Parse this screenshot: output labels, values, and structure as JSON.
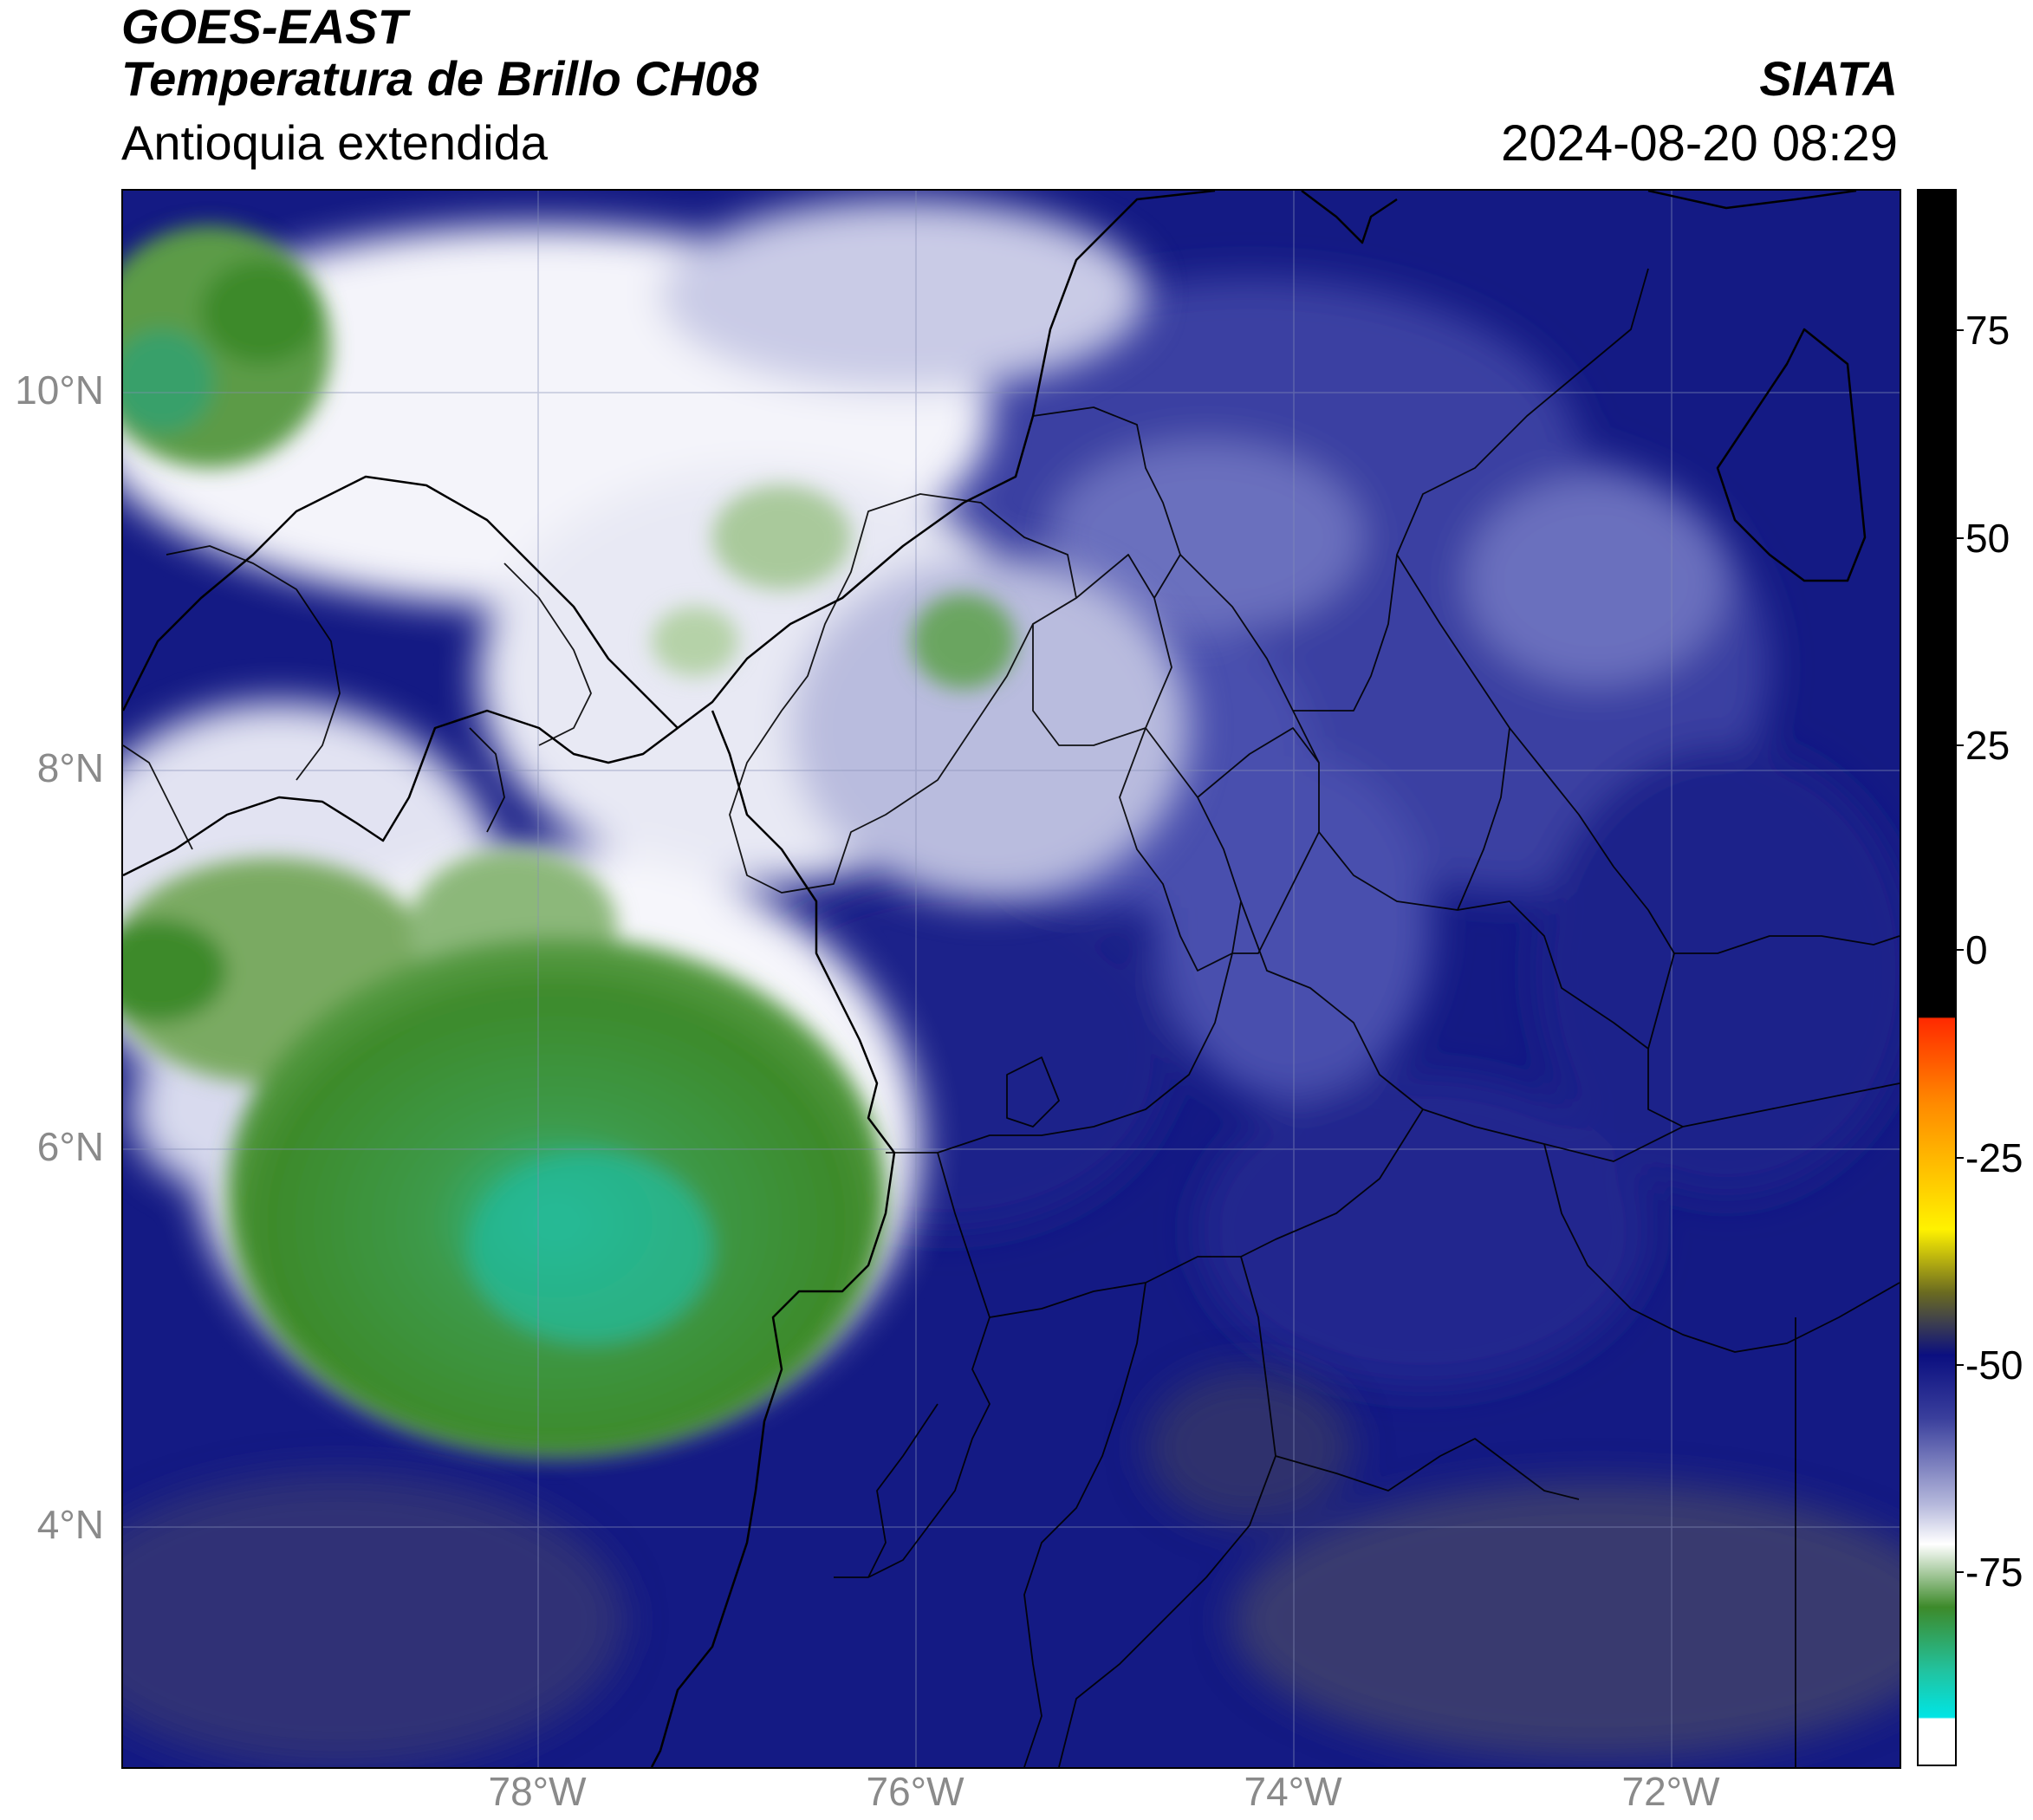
{
  "header": {
    "satellite": "GOES-EAST",
    "product": "Temperatura de Brillo CH08",
    "region": "Antioquia extendida",
    "organization": "SIATA",
    "datetime": "2024-08-20 08:29"
  },
  "map": {
    "lat_ticks": [
      "10°N",
      "8°N",
      "6°N",
      "4°N"
    ],
    "lon_ticks": [
      "78°W",
      "76°W",
      "74°W",
      "72°W"
    ],
    "extent": {
      "lon_min": -80.2,
      "lon_max": -70.8,
      "lat_min": 2.5,
      "lat_max": 11.1
    },
    "grid": true,
    "boundaries": [
      "coastline",
      "country borders",
      "department borders"
    ]
  },
  "colorbar": {
    "ticks": [
      "75",
      "50",
      "25",
      "0",
      "-25",
      "-50",
      "-75"
    ],
    "min": -93,
    "max": 92,
    "colors": {
      "warm_black": "#000000",
      "red": "#ff2a00",
      "orange": "#ff8a00",
      "yellow": "#fff200",
      "olive": "#6b6b20",
      "dark_blue": "#0b0f80",
      "mid_blue": "#3a3f9c",
      "lavender": "#b6b9dc",
      "white": "#ffffff",
      "green": "#3d8a2a",
      "teal": "#22c29e",
      "cyan": "#00e5e5"
    }
  }
}
